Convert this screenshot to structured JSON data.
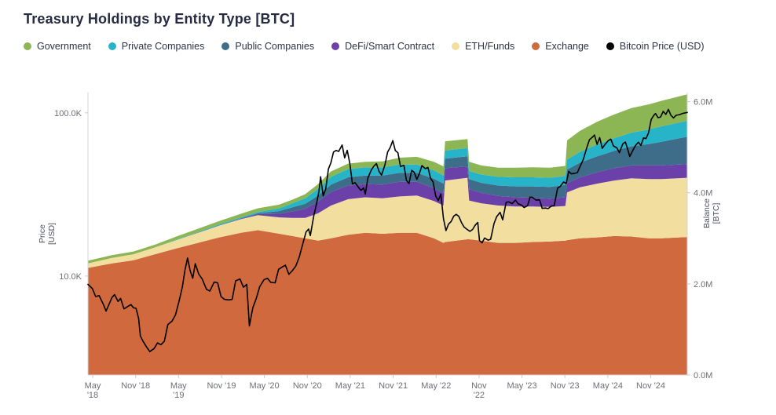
{
  "title": "Treasury Holdings by Entity Type [BTC]",
  "legend": [
    {
      "label": "Government",
      "color": "#8cb654"
    },
    {
      "label": "Private Companies",
      "color": "#28b4c8"
    },
    {
      "label": "Public Companies",
      "color": "#3d6d89"
    },
    {
      "label": "DeFi/Smart Contract",
      "color": "#6b40a8"
    },
    {
      "label": "ETH/Funds",
      "color": "#f2dfa0"
    },
    {
      "label": "Exchange",
      "color": "#d0693e"
    },
    {
      "label": "Bitcoin Price (USD)",
      "color": "#000000"
    }
  ],
  "chart_data": {
    "type": "area",
    "subtype": "stacked-area-with-log-price-line",
    "title": "Treasury Holdings by Entity Type [BTC]",
    "units": {
      "balance": "million BTC",
      "price": "USD"
    },
    "x_axis": {
      "range": [
        2018.32,
        2025.3
      ],
      "ticks": [
        {
          "t": 2018.375,
          "label": "May\n'18"
        },
        {
          "t": 2018.875,
          "label": "Nov '18"
        },
        {
          "t": 2019.375,
          "label": "May\n'19"
        },
        {
          "t": 2019.875,
          "label": "Nov '19"
        },
        {
          "t": 2020.375,
          "label": "May '20"
        },
        {
          "t": 2020.875,
          "label": "Nov '20"
        },
        {
          "t": 2021.375,
          "label": "May '21"
        },
        {
          "t": 2021.875,
          "label": "Nov '21"
        },
        {
          "t": 2022.375,
          "label": "May '22"
        },
        {
          "t": 2022.875,
          "label": "Nov\n'22"
        },
        {
          "t": 2023.375,
          "label": "May '23"
        },
        {
          "t": 2023.875,
          "label": "Nov '23"
        },
        {
          "t": 2024.375,
          "label": "May '24"
        },
        {
          "t": 2024.875,
          "label": "Nov '24"
        }
      ]
    },
    "left_axis": {
      "label_lines": [
        "Price",
        "[USD]"
      ],
      "scale": "log",
      "range": [
        2480,
        133000
      ],
      "ticks": [
        {
          "value": 10000,
          "label": "10.0K"
        },
        {
          "value": 100000,
          "label": "100.0K"
        }
      ]
    },
    "right_axis": {
      "label_lines": [
        "Balance",
        "[BTC]"
      ],
      "scale": "linear",
      "range": [
        0,
        6.2
      ],
      "ticks": [
        {
          "value": 0,
          "label": "0.0M"
        },
        {
          "value": 2,
          "label": "2.0M"
        },
        {
          "value": 4,
          "label": "4.0M"
        },
        {
          "value": 6,
          "label": "6.0M"
        }
      ]
    },
    "stack_x": [
      2018.32,
      2018.6,
      2018.85,
      2019.1,
      2019.35,
      2019.6,
      2019.85,
      2020.1,
      2020.3,
      2020.55,
      2020.7,
      2020.85,
      2021.0,
      2021.15,
      2021.35,
      2021.55,
      2021.75,
      2021.95,
      2022.15,
      2022.35,
      2022.46,
      2022.48,
      2022.74,
      2022.76,
      2022.9,
      2023.1,
      2023.3,
      2023.5,
      2023.7,
      2023.88,
      2023.9,
      2024.05,
      2024.25,
      2024.45,
      2024.65,
      2024.85,
      2025.0,
      2025.3
    ],
    "series": [
      {
        "name": "Exchange",
        "color": "#d0693e",
        "values": [
          2.35,
          2.45,
          2.52,
          2.65,
          2.78,
          2.9,
          3.02,
          3.12,
          3.18,
          3.1,
          3.05,
          3.0,
          2.95,
          3.0,
          3.08,
          3.12,
          3.1,
          3.12,
          3.12,
          3.0,
          2.9,
          2.92,
          2.98,
          2.98,
          2.95,
          2.9,
          2.9,
          2.92,
          2.93,
          2.95,
          2.96,
          3.0,
          3.02,
          3.05,
          3.04,
          3.0,
          3.0,
          3.03
        ]
      },
      {
        "name": "ETH/Funds",
        "color": "#f2dfa0",
        "values": [
          0.1,
          0.12,
          0.13,
          0.15,
          0.18,
          0.22,
          0.26,
          0.3,
          0.33,
          0.36,
          0.4,
          0.45,
          0.6,
          0.72,
          0.78,
          0.78,
          0.78,
          0.8,
          0.82,
          0.82,
          0.82,
          1.35,
          1.35,
          0.85,
          0.82,
          0.82,
          0.8,
          0.78,
          0.76,
          0.76,
          1.05,
          1.12,
          1.18,
          1.22,
          1.28,
          1.3,
          1.3,
          1.3
        ]
      },
      {
        "name": "DeFi/Smart Contract",
        "color": "#6b40a8",
        "values": [
          0,
          0,
          0,
          0,
          0,
          0,
          0,
          0.01,
          0.02,
          0.08,
          0.14,
          0.2,
          0.26,
          0.3,
          0.3,
          0.29,
          0.3,
          0.32,
          0.3,
          0.28,
          0.27,
          0.27,
          0.25,
          0.25,
          0.23,
          0.21,
          0.2,
          0.19,
          0.18,
          0.19,
          0.2,
          0.22,
          0.25,
          0.27,
          0.28,
          0.3,
          0.3,
          0.3
        ]
      },
      {
        "name": "Public Companies",
        "color": "#3d6d89",
        "values": [
          0,
          0,
          0,
          0,
          0,
          0.01,
          0.01,
          0.01,
          0.02,
          0.06,
          0.09,
          0.11,
          0.13,
          0.16,
          0.18,
          0.19,
          0.2,
          0.2,
          0.2,
          0.21,
          0.21,
          0.21,
          0.22,
          0.22,
          0.22,
          0.23,
          0.24,
          0.25,
          0.26,
          0.27,
          0.3,
          0.32,
          0.35,
          0.38,
          0.42,
          0.47,
          0.52,
          0.6
        ]
      },
      {
        "name": "Private Companies",
        "color": "#28b4c8",
        "values": [
          0,
          0,
          0,
          0,
          0.01,
          0.01,
          0.02,
          0.02,
          0.03,
          0.06,
          0.09,
          0.12,
          0.15,
          0.17,
          0.18,
          0.18,
          0.18,
          0.18,
          0.18,
          0.18,
          0.18,
          0.18,
          0.18,
          0.18,
          0.18,
          0.19,
          0.2,
          0.2,
          0.2,
          0.2,
          0.22,
          0.24,
          0.26,
          0.28,
          0.3,
          0.32,
          0.34,
          0.35
        ]
      },
      {
        "name": "Government",
        "color": "#8cb654",
        "values": [
          0.06,
          0.06,
          0.06,
          0.06,
          0.07,
          0.07,
          0.07,
          0.08,
          0.08,
          0.08,
          0.08,
          0.09,
          0.1,
          0.12,
          0.12,
          0.12,
          0.13,
          0.15,
          0.17,
          0.19,
          0.2,
          0.2,
          0.2,
          0.2,
          0.2,
          0.2,
          0.21,
          0.22,
          0.22,
          0.22,
          0.42,
          0.46,
          0.5,
          0.52,
          0.54,
          0.55,
          0.56,
          0.58
        ]
      }
    ],
    "price_line": {
      "name": "Bitcoin Price (USD)",
      "color": "#000000",
      "x": [
        2018.32,
        2018.37,
        2018.41,
        2018.45,
        2018.5,
        2018.53,
        2018.57,
        2018.6,
        2018.63,
        2018.67,
        2018.7,
        2018.74,
        2018.78,
        2018.82,
        2018.85,
        2018.88,
        2018.91,
        2018.93,
        2018.96,
        2019.0,
        2019.04,
        2019.09,
        2019.13,
        2019.17,
        2019.21,
        2019.25,
        2019.3,
        2019.34,
        2019.38,
        2019.42,
        2019.45,
        2019.48,
        2019.51,
        2019.54,
        2019.57,
        2019.61,
        2019.65,
        2019.7,
        2019.74,
        2019.79,
        2019.83,
        2019.87,
        2019.91,
        2019.96,
        2020.0,
        2020.04,
        2020.09,
        2020.13,
        2020.17,
        2020.2,
        2020.24,
        2020.28,
        2020.32,
        2020.37,
        2020.41,
        2020.45,
        2020.5,
        2020.54,
        2020.58,
        2020.62,
        2020.66,
        2020.7,
        2020.74,
        2020.78,
        2020.82,
        2020.86,
        2020.89,
        2020.91,
        2020.95,
        2020.98,
        2021.01,
        2021.03,
        2021.06,
        2021.09,
        2021.12,
        2021.15,
        2021.18,
        2021.21,
        2021.24,
        2021.28,
        2021.31,
        2021.34,
        2021.37,
        2021.4,
        2021.43,
        2021.46,
        2021.5,
        2021.53,
        2021.55,
        2021.58,
        2021.62,
        2021.65,
        2021.68,
        2021.71,
        2021.74,
        2021.78,
        2021.81,
        2021.84,
        2021.87,
        2021.9,
        2021.93,
        2021.96,
        2022.0,
        2022.03,
        2022.06,
        2022.09,
        2022.12,
        2022.15,
        2022.18,
        2022.21,
        2022.25,
        2022.28,
        2022.31,
        2022.34,
        2022.37,
        2022.4,
        2022.43,
        2022.46,
        2022.49,
        2022.52,
        2022.55,
        2022.58,
        2022.61,
        2022.64,
        2022.67,
        2022.7,
        2022.73,
        2022.77,
        2022.8,
        2022.83,
        2022.86,
        2022.88,
        2022.91,
        2022.94,
        2022.98,
        2023.01,
        2023.05,
        2023.08,
        2023.12,
        2023.15,
        2023.19,
        2023.22,
        2023.26,
        2023.3,
        2023.33,
        2023.37,
        2023.4,
        2023.44,
        2023.47,
        2023.5,
        2023.54,
        2023.58,
        2023.61,
        2023.65,
        2023.68,
        2023.72,
        2023.75,
        2023.79,
        2023.82,
        2023.86,
        2023.89,
        2023.92,
        2023.95,
        2023.99,
        2024.02,
        2024.06,
        2024.09,
        2024.13,
        2024.16,
        2024.2,
        2024.22,
        2024.25,
        2024.28,
        2024.31,
        2024.34,
        2024.38,
        2024.41,
        2024.44,
        2024.48,
        2024.51,
        2024.55,
        2024.58,
        2024.61,
        2024.63,
        2024.67,
        2024.7,
        2024.73,
        2024.76,
        2024.79,
        2024.82,
        2024.85,
        2024.88,
        2024.91,
        2024.93,
        2024.96,
        2024.99,
        2025.02,
        2025.05,
        2025.08,
        2025.11,
        2025.14,
        2025.17,
        2025.21,
        2025.25,
        2025.3
      ],
      "values": [
        8900,
        8400,
        7500,
        7600,
        6700,
        6100,
        6800,
        7400,
        7700,
        7000,
        7300,
        6300,
        6500,
        6700,
        6400,
        6350,
        5500,
        4300,
        4000,
        3700,
        3450,
        3600,
        3900,
        3800,
        4000,
        5050,
        5300,
        5800,
        7000,
        8600,
        10900,
        12900,
        10800,
        9700,
        11900,
        10300,
        9600,
        8300,
        8100,
        9200,
        9100,
        7500,
        7200,
        7150,
        7200,
        9350,
        9600,
        8550,
        8900,
        4950,
        6400,
        7300,
        8600,
        9500,
        9700,
        9150,
        9100,
        11000,
        11350,
        11650,
        10250,
        10800,
        11500,
        13050,
        15600,
        18650,
        19400,
        17700,
        23400,
        27400,
        33000,
        40600,
        31000,
        34300,
        45200,
        49600,
        57500,
        58800,
        58000,
        63500,
        53000,
        58900,
        49000,
        36700,
        37300,
        35600,
        33500,
        34700,
        31800,
        39900,
        44600,
        47100,
        48800,
        43800,
        41500,
        48200,
        57500,
        61300,
        67600,
        58700,
        57000,
        46900,
        47700,
        38500,
        36900,
        44400,
        43200,
        39100,
        42400,
        47500,
        45500,
        46300,
        39700,
        37700,
        31000,
        29000,
        31800,
        22500,
        19000,
        20800,
        21600,
        23300,
        23900,
        23200,
        21300,
        20000,
        19400,
        18800,
        19300,
        20500,
        21300,
        16500,
        16000,
        17100,
        16600,
        16800,
        21000,
        23100,
        24600,
        22100,
        28300,
        28500,
        27800,
        29200,
        27700,
        27200,
        26300,
        27000,
        30500,
        30300,
        29200,
        29300,
        26000,
        26100,
        25900,
        26900,
        27000,
        34500,
        35400,
        37700,
        36900,
        43800,
        42300,
        42600,
        43000,
        48000,
        51800,
        61200,
        68300,
        71300,
        73100,
        64000,
        70600,
        60600,
        63800,
        67500,
        69000,
        62700,
        61000,
        57000,
        64600,
        66200,
        58900,
        54000,
        59400,
        63300,
        66000,
        63200,
        70200,
        69500,
        75600,
        91000,
        96400,
        99000,
        93400,
        94300,
        102100,
        97700,
        104800,
        96600,
        93000,
        96500,
        97500,
        99200,
        100500
      ]
    }
  }
}
